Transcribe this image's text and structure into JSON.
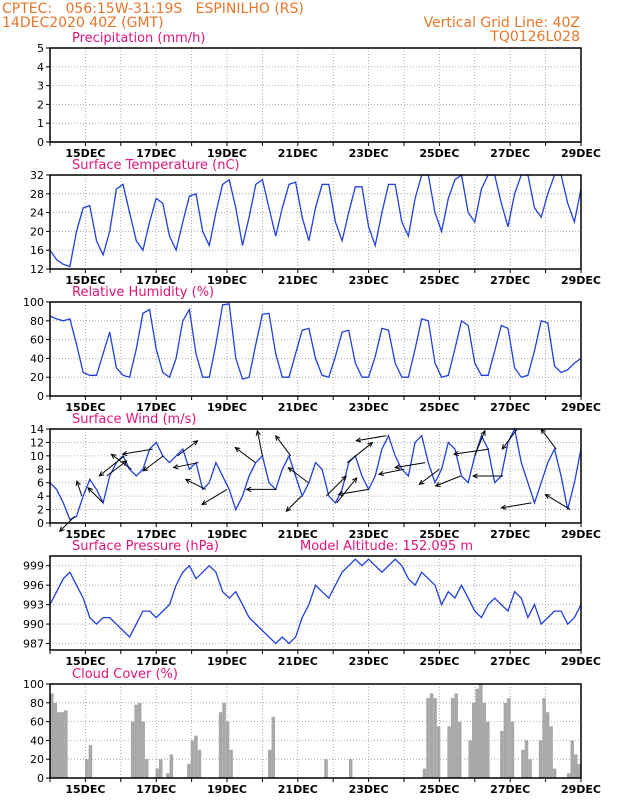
{
  "header": {
    "line1_left": "CPTEC:   056:15W-31:19S   ESPINILHO (RS)",
    "line2_left": "14DEC2020 40Z (GMT)",
    "line2_right": "Vertical Grid Line: 40Z",
    "line3_right": "TQ0126L028"
  },
  "colors": {
    "header": "#e8762a",
    "title": "#e0147a",
    "line": "#2040e0",
    "bar": "#a8a8a8",
    "axis": "#000000"
  },
  "chart_data": [
    {
      "type": "line",
      "title": "Precipitation (mm/h)",
      "ylim": [
        0,
        5
      ],
      "yticks": [
        0,
        1,
        2,
        3,
        4,
        5
      ],
      "x_start_day": 14,
      "x_end_day": 29,
      "xticks": [
        "15DEC",
        "17DEC",
        "19DEC",
        "21DEC",
        "23DEC",
        "25DEC",
        "27DEC",
        "29DEC"
      ],
      "values": [
        0,
        0,
        0,
        0,
        0,
        0,
        0,
        0,
        0,
        0,
        0,
        0,
        0,
        0,
        0,
        0
      ]
    },
    {
      "type": "line",
      "title": "Surface Temperature (nC)",
      "ylim": [
        12,
        32
      ],
      "yticks": [
        12,
        16,
        20,
        24,
        28,
        32
      ],
      "x_start_day": 14,
      "x_end_day": 29,
      "xticks": [
        "15DEC",
        "17DEC",
        "19DEC",
        "21DEC",
        "23DEC",
        "25DEC",
        "27DEC",
        "29DEC"
      ],
      "values": [
        16,
        14,
        13,
        12.5,
        20,
        25,
        25.5,
        18,
        15,
        20,
        29,
        30,
        24,
        18,
        16,
        22,
        27,
        26,
        19,
        16,
        22,
        27.5,
        28,
        20,
        17,
        24,
        30,
        31,
        25,
        17,
        23,
        30,
        31,
        25,
        19,
        25,
        30,
        30.5,
        23,
        18,
        25,
        30,
        30,
        22,
        18,
        24,
        29.5,
        29.5,
        21,
        17,
        24,
        30,
        30,
        22,
        19,
        27,
        32,
        32,
        24,
        20,
        27,
        31,
        32,
        24,
        22,
        29,
        32,
        32,
        26,
        21,
        28,
        32,
        32,
        25,
        23,
        28,
        32,
        32,
        26,
        22,
        29
      ]
    },
    {
      "type": "line",
      "title": "Relative Humidity (%)",
      "ylim": [
        0,
        100
      ],
      "yticks": [
        0,
        20,
        40,
        60,
        80,
        100
      ],
      "x_start_day": 14,
      "x_end_day": 29,
      "xticks": [
        "15DEC",
        "17DEC",
        "19DEC",
        "21DEC",
        "23DEC",
        "25DEC",
        "27DEC",
        "29DEC"
      ],
      "values": [
        85,
        82,
        80,
        82,
        55,
        25,
        22,
        22,
        45,
        68,
        30,
        22,
        20,
        50,
        88,
        92,
        50,
        25,
        20,
        40,
        80,
        92,
        45,
        20,
        20,
        55,
        97,
        98,
        40,
        18,
        20,
        55,
        87,
        88,
        45,
        20,
        20,
        45,
        70,
        72,
        40,
        22,
        20,
        42,
        68,
        70,
        35,
        20,
        20,
        42,
        72,
        70,
        35,
        20,
        20,
        50,
        82,
        80,
        35,
        20,
        22,
        50,
        80,
        75,
        35,
        22,
        22,
        48,
        75,
        72,
        30,
        20,
        22,
        48,
        80,
        78,
        32,
        25,
        28,
        35,
        40
      ]
    },
    {
      "type": "line",
      "title": "Surface Wind (m/s)",
      "ylim": [
        0,
        14
      ],
      "yticks": [
        0,
        2,
        4,
        6,
        8,
        10,
        12,
        14
      ],
      "x_start_day": 14,
      "x_end_day": 29,
      "xticks": [
        "15DEC",
        "17DEC",
        "19DEC",
        "21DEC",
        "23DEC",
        "25DEC",
        "27DEC",
        "29DEC"
      ],
      "values": [
        6,
        5,
        3,
        0.5,
        1,
        4,
        6.5,
        5,
        3,
        7,
        9,
        10,
        8,
        7,
        8,
        11,
        12,
        10,
        9,
        10,
        11,
        8,
        9,
        5,
        6,
        9,
        7,
        5,
        2,
        4,
        7,
        9,
        10,
        6,
        5,
        8,
        10,
        7,
        4,
        6,
        9,
        8,
        4,
        3,
        5,
        9,
        10,
        7,
        5,
        7,
        11,
        13,
        10,
        8,
        7,
        12,
        13,
        9,
        6,
        8,
        12,
        11,
        7,
        6,
        10,
        13,
        11,
        6,
        7,
        12,
        14,
        9,
        6,
        3,
        6,
        9,
        11,
        7,
        2,
        6,
        11
      ],
      "vectors": [
        {
          "day": 14.7,
          "u": -3,
          "v": -3
        },
        {
          "day": 14.9,
          "u": -1,
          "v": 3
        },
        {
          "day": 15.5,
          "u": -3,
          "v": 3
        },
        {
          "day": 15.6,
          "u": 4,
          "v": 3
        },
        {
          "day": 16.1,
          "u": -5,
          "v": -4
        },
        {
          "day": 16.3,
          "u": -4,
          "v": 3
        },
        {
          "day": 16.9,
          "u": -6,
          "v": -1
        },
        {
          "day": 17.2,
          "u": -4,
          "v": -3
        },
        {
          "day": 17.6,
          "u": 4,
          "v": 3
        },
        {
          "day": 18.2,
          "u": -5,
          "v": -1
        },
        {
          "day": 18.4,
          "u": -4,
          "v": 2
        },
        {
          "day": 19.0,
          "u": -5,
          "v": -3
        },
        {
          "day": 19.8,
          "u": -4,
          "v": 3
        },
        {
          "day": 20.0,
          "u": -1,
          "v": 5
        },
        {
          "day": 20.4,
          "u": -6,
          "v": 0
        },
        {
          "day": 20.8,
          "u": -3,
          "v": 4
        },
        {
          "day": 21.1,
          "u": -3,
          "v": -3
        },
        {
          "day": 21.3,
          "u": -4,
          "v": 3
        },
        {
          "day": 21.8,
          "u": 4,
          "v": 4
        },
        {
          "day": 22.1,
          "u": 4,
          "v": 5
        },
        {
          "day": 22.4,
          "u": 5,
          "v": 4
        },
        {
          "day": 23.0,
          "u": -6,
          "v": -1
        },
        {
          "day": 23.5,
          "u": -6,
          "v": -1
        },
        {
          "day": 24.0,
          "u": -5,
          "v": -1
        },
        {
          "day": 24.6,
          "u": -6,
          "v": -1
        },
        {
          "day": 25.0,
          "u": -4,
          "v": -3
        },
        {
          "day": 25.6,
          "u": -5,
          "v": -2
        },
        {
          "day": 26.0,
          "u": 2,
          "v": 5
        },
        {
          "day": 26.4,
          "u": -7,
          "v": -1
        },
        {
          "day": 26.8,
          "u": -6,
          "v": 0
        },
        {
          "day": 27.2,
          "u": -3,
          "v": -4
        },
        {
          "day": 27.6,
          "u": -6,
          "v": -1
        },
        {
          "day": 28.3,
          "u": -3,
          "v": 4
        },
        {
          "day": 28.7,
          "u": -5,
          "v": 3
        }
      ]
    },
    {
      "type": "line",
      "title": "Surface Pressure (hPa)",
      "annotation": "Model Altitude: 152.095 m",
      "ylim": [
        986,
        1000.5
      ],
      "yticks": [
        987,
        990,
        993,
        996,
        999
      ],
      "x_start_day": 14,
      "x_end_day": 29,
      "xticks": [
        "15DEC",
        "17DEC",
        "19DEC",
        "21DEC",
        "23DEC",
        "25DEC",
        "27DEC",
        "29DEC"
      ],
      "values": [
        993,
        995,
        997,
        998,
        996,
        994,
        991,
        990,
        991,
        991,
        990,
        989,
        988,
        990,
        992,
        992,
        991,
        992,
        993,
        996,
        998,
        999,
        997,
        998,
        999,
        998,
        995,
        994,
        995,
        993,
        991,
        990,
        989,
        988,
        987,
        988,
        987,
        988,
        991,
        993,
        996,
        995,
        994,
        996,
        998,
        999,
        1000,
        999,
        1000,
        999,
        998,
        999,
        1000,
        999,
        997,
        996,
        998,
        997,
        996,
        993,
        995,
        994,
        996,
        994,
        992,
        991,
        993,
        994,
        993,
        992,
        995,
        994,
        991,
        993,
        990,
        991,
        992,
        992,
        990,
        991,
        993
      ]
    },
    {
      "type": "bar",
      "title": "Cloud Cover (%)",
      "ylim": [
        0,
        100
      ],
      "yticks": [
        0,
        20,
        40,
        60,
        80,
        100
      ],
      "x_start_day": 14,
      "x_end_day": 29,
      "xticks": [
        "15DEC",
        "17DEC",
        "19DEC",
        "21DEC",
        "23DEC",
        "25DEC",
        "27DEC",
        "29DEC"
      ],
      "values": [
        90,
        80,
        70,
        70,
        72,
        0,
        0,
        0,
        0,
        0,
        20,
        35,
        0,
        0,
        0,
        0,
        0,
        0,
        0,
        0,
        0,
        0,
        0,
        60,
        78,
        80,
        60,
        20,
        0,
        0,
        10,
        20,
        0,
        5,
        25,
        0,
        0,
        0,
        0,
        15,
        40,
        45,
        30,
        0,
        0,
        0,
        0,
        0,
        70,
        80,
        60,
        30,
        0,
        0,
        0,
        0,
        0,
        0,
        0,
        0,
        0,
        0,
        30,
        65,
        0,
        0,
        0,
        0,
        0,
        0,
        0,
        0,
        0,
        0,
        0,
        0,
        0,
        0,
        20,
        0,
        0,
        0,
        0,
        0,
        0,
        20,
        0,
        0,
        0,
        0,
        0,
        0,
        0,
        0,
        0,
        0,
        0,
        0,
        0,
        0,
        0,
        0,
        0,
        0,
        0,
        0,
        10,
        85,
        90,
        85,
        55,
        0,
        0,
        55,
        85,
        90,
        60,
        0,
        0,
        40,
        80,
        95,
        100,
        80,
        60,
        0,
        0,
        0,
        50,
        80,
        85,
        60,
        0,
        0,
        30,
        40,
        20,
        0,
        0,
        40,
        85,
        70,
        55,
        10,
        0,
        0,
        0,
        5,
        40,
        25,
        15
      ]
    }
  ]
}
